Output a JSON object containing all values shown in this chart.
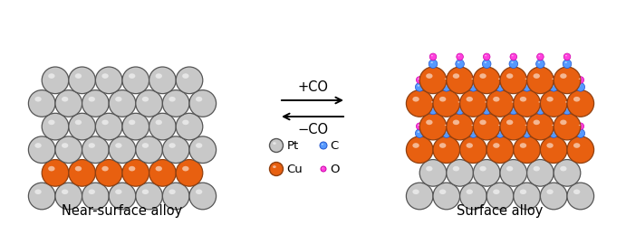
{
  "left_label": "Near-surface alloy",
  "right_label": "Surface alloy",
  "arrow_top": "+CO",
  "arrow_bottom": "−CO",
  "pt_color": "#c8c8c8",
  "pt_edge": "#555555",
  "cu_color": "#e86010",
  "cu_edge": "#904010",
  "c_color": "#5599ff",
  "c_edge": "#2255cc",
  "o_color": "#ff40dd",
  "o_edge": "#cc00aa",
  "background": "#ffffff",
  "fig_w": 6.91,
  "fig_h": 2.49
}
